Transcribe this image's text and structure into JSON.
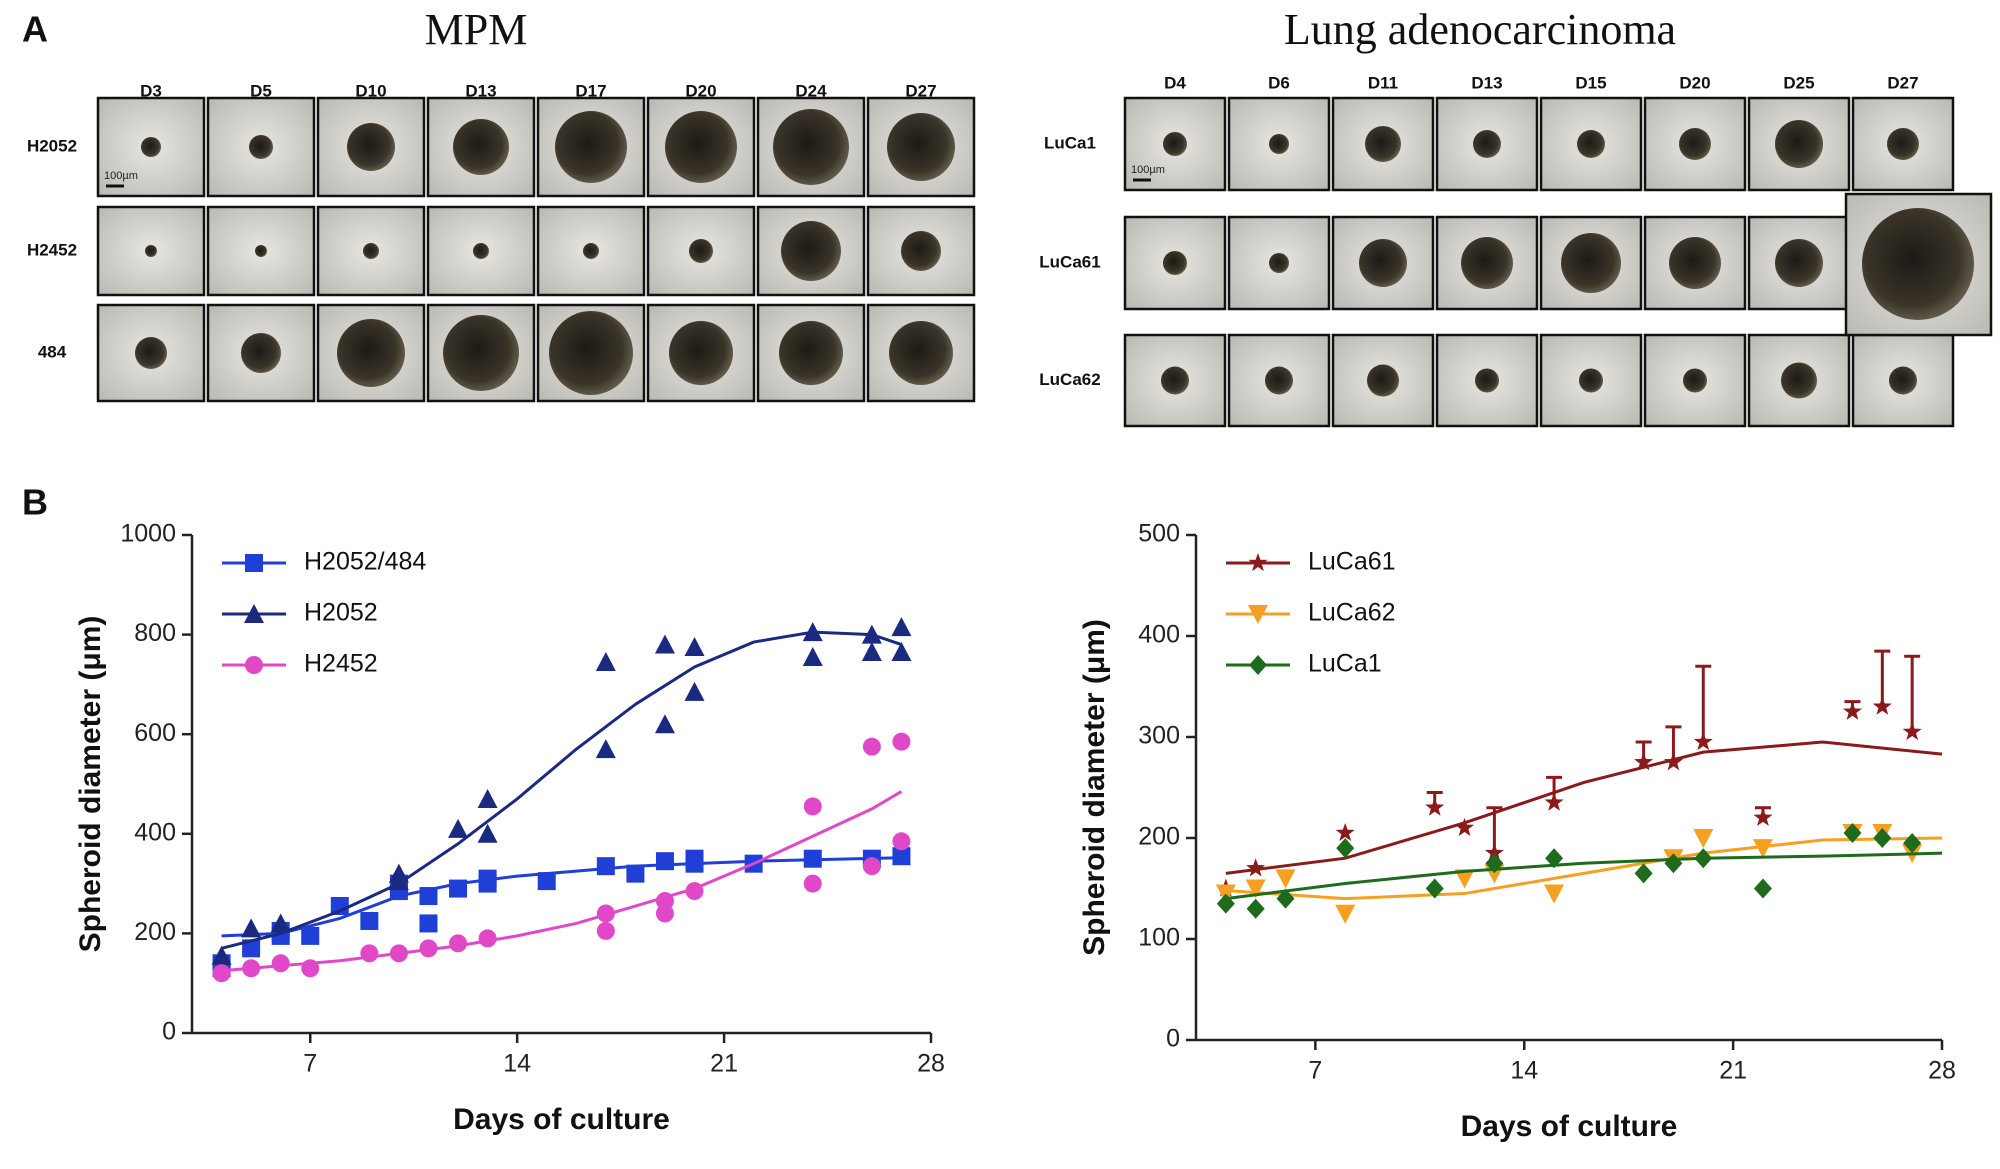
{
  "panel_a": {
    "label": "A",
    "left": {
      "title": "MPM",
      "columns": [
        "D3",
        "D5",
        "D10",
        "D13",
        "D17",
        "D20",
        "D24",
        "D27"
      ],
      "rows": [
        "H2052",
        "H2452",
        "484"
      ],
      "scale_bar_label": "100µm"
    },
    "right": {
      "title": "Lung adenocarcinoma",
      "columns": [
        "D4",
        "D6",
        "D11",
        "D13",
        "D15",
        "D20",
        "D25",
        "D27"
      ],
      "rows": [
        "LuCa1",
        "LuCa61",
        "LuCa62"
      ],
      "scale_bar_label": "100µm"
    }
  },
  "panel_b_label": "B",
  "chart_data": [
    {
      "type": "scatter",
      "xlabel": "Days of culture",
      "ylabel": "Spheroid diameter (μm)",
      "xlim": [
        3,
        28
      ],
      "ylim": [
        0,
        1000
      ],
      "xticks": [
        7,
        14,
        21,
        28
      ],
      "yticks": [
        0,
        200,
        400,
        600,
        800,
        1000
      ],
      "legend": "upper left",
      "series": [
        {
          "name": "H2052/484",
          "color": "#1f3fd6",
          "marker": "square",
          "x": [
            4,
            4,
            5,
            6,
            6,
            7,
            8,
            9,
            10,
            10,
            11,
            11,
            12,
            13,
            13,
            15,
            17,
            18,
            19,
            20,
            20,
            22,
            24,
            26,
            27
          ],
          "values": [
            140,
            130,
            170,
            205,
            195,
            195,
            255,
            225,
            285,
            300,
            275,
            220,
            290,
            300,
            310,
            305,
            335,
            320,
            345,
            350,
            340,
            340,
            350,
            350,
            355
          ],
          "fit": {
            "x": [
              4,
              6,
              8,
              10,
              12,
              14,
              16,
              18,
              20,
              22,
              24,
              27
            ],
            "values": [
              195,
              200,
              230,
              275,
              300,
              315,
              325,
              335,
              340,
              345,
              348,
              352
            ]
          }
        },
        {
          "name": "H2052",
          "color": "#1a2a80",
          "marker": "triangle",
          "x": [
            4,
            5,
            6,
            10,
            10,
            12,
            13,
            13,
            17,
            17,
            19,
            19,
            20,
            20,
            24,
            24,
            26,
            26,
            27,
            27
          ],
          "values": [
            155,
            210,
            220,
            320,
            305,
            410,
            470,
            400,
            745,
            570,
            780,
            620,
            775,
            685,
            805,
            755,
            800,
            765,
            815,
            765
          ],
          "fit": {
            "x": [
              4,
              6,
              8,
              10,
              12,
              14,
              16,
              18,
              20,
              22,
              24,
              26,
              27
            ],
            "values": [
              170,
              200,
              245,
              300,
              380,
              470,
              570,
              660,
              735,
              785,
              805,
              800,
              780
            ]
          }
        },
        {
          "name": "H2452",
          "color": "#e048c8",
          "marker": "circle",
          "x": [
            4,
            5,
            6,
            7,
            9,
            10,
            11,
            12,
            13,
            17,
            17,
            19,
            19,
            20,
            24,
            24,
            26,
            26,
            27,
            27
          ],
          "values": [
            120,
            130,
            140,
            130,
            160,
            160,
            170,
            180,
            190,
            240,
            205,
            265,
            240,
            285,
            300,
            455,
            335,
            575,
            385,
            585
          ],
          "fit": {
            "x": [
              4,
              8,
              12,
              14,
              16,
              18,
              20,
              22,
              24,
              26,
              27
            ],
            "values": [
              125,
              145,
              175,
              195,
              220,
              255,
              290,
              340,
              395,
              450,
              485
            ]
          }
        }
      ]
    },
    {
      "type": "scatter",
      "xlabel": "Days of culture",
      "ylabel": "Spheroid diameter (μm)",
      "xlim": [
        3,
        28
      ],
      "ylim": [
        0,
        500
      ],
      "xticks": [
        7,
        14,
        21,
        28
      ],
      "yticks": [
        0,
        100,
        200,
        300,
        400,
        500
      ],
      "legend": "upper left",
      "series": [
        {
          "name": "LuCa61",
          "color": "#8b1a1a",
          "marker": "star",
          "x": [
            4,
            5,
            8,
            11,
            12,
            13,
            15,
            18,
            19,
            20,
            22,
            25,
            26,
            27
          ],
          "values": [
            150,
            170,
            205,
            230,
            210,
            185,
            235,
            275,
            275,
            295,
            220,
            325,
            330,
            305
          ],
          "errors": [
            null,
            null,
            null,
            15,
            null,
            45,
            25,
            20,
            35,
            75,
            10,
            10,
            55,
            75
          ],
          "fit": {
            "x": [
              4,
              8,
              12,
              16,
              20,
              24,
              28
            ],
            "values": [
              165,
              180,
              215,
              255,
              285,
              295,
              283
            ]
          }
        },
        {
          "name": "LuCa62",
          "color": "#f5a020",
          "marker": "triangle-down",
          "x": [
            4,
            5,
            6,
            8,
            12,
            13,
            15,
            19,
            20,
            22,
            25,
            26,
            27
          ],
          "values": [
            145,
            150,
            160,
            125,
            160,
            165,
            145,
            180,
            200,
            190,
            205,
            205,
            185
          ],
          "fit": {
            "x": [
              4,
              8,
              12,
              16,
              20,
              24,
              28
            ],
            "values": [
              148,
              140,
              145,
              165,
              185,
              198,
              200
            ]
          }
        },
        {
          "name": "LuCa1",
          "color": "#1e6b1e",
          "marker": "diamond",
          "x": [
            4,
            5,
            6,
            8,
            11,
            13,
            15,
            18,
            19,
            20,
            22,
            25,
            26,
            27
          ],
          "values": [
            135,
            130,
            140,
            190,
            150,
            175,
            180,
            165,
            175,
            180,
            150,
            205,
            200,
            195
          ],
          "fit": {
            "x": [
              4,
              8,
              12,
              16,
              20,
              24,
              28
            ],
            "values": [
              140,
              155,
              167,
              175,
              180,
              182,
              185
            ]
          }
        }
      ]
    }
  ]
}
